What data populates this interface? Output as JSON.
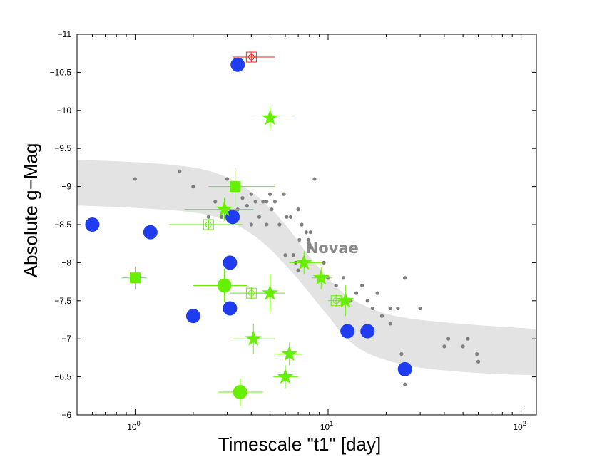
{
  "chart_data": {
    "type": "scatter",
    "xlabel": "Timescale \"t1\" [day]",
    "ylabel": "Absolute g−Mag",
    "xscale": "log",
    "xlim": [
      0.5,
      120
    ],
    "ylim": [
      -11,
      -6
    ],
    "y_inverted": true,
    "grid": false,
    "x_ticks": [
      {
        "value": 1,
        "base": "10",
        "exp": "0"
      },
      {
        "value": 10,
        "base": "10",
        "exp": "1"
      },
      {
        "value": 100,
        "base": "10",
        "exp": "2"
      }
    ],
    "y_ticks": [
      {
        "value": -11,
        "label": "−11"
      },
      {
        "value": -10.5,
        "label": "−10.5"
      },
      {
        "value": -10,
        "label": "−10"
      },
      {
        "value": -9.5,
        "label": "−9.5"
      },
      {
        "value": -9,
        "label": "−9"
      },
      {
        "value": -8.5,
        "label": "−8.5"
      },
      {
        "value": -8,
        "label": "−8"
      },
      {
        "value": -7.5,
        "label": "−7.5"
      },
      {
        "value": -7,
        "label": "−7"
      },
      {
        "value": -6.5,
        "label": "−6.5"
      },
      {
        "value": -6,
        "label": "−6"
      }
    ],
    "region": {
      "label": "Novae",
      "label_x": 10.5,
      "label_y": -8.2,
      "upper": [
        [
          0.5,
          -9.35
        ],
        [
          1,
          -9.32
        ],
        [
          2,
          -9.25
        ],
        [
          3,
          -9.12
        ],
        [
          4,
          -8.93
        ],
        [
          5,
          -8.72
        ],
        [
          6,
          -8.5
        ],
        [
          7,
          -8.28
        ],
        [
          8,
          -8.08
        ],
        [
          10,
          -7.8
        ],
        [
          12,
          -7.6
        ],
        [
          15,
          -7.45
        ],
        [
          20,
          -7.33
        ],
        [
          30,
          -7.25
        ],
        [
          60,
          -7.18
        ],
        [
          120,
          -7.13
        ]
      ],
      "lower": [
        [
          0.5,
          -8.75
        ],
        [
          1,
          -8.72
        ],
        [
          2,
          -8.66
        ],
        [
          3,
          -8.55
        ],
        [
          4,
          -8.38
        ],
        [
          5,
          -8.18
        ],
        [
          6,
          -7.97
        ],
        [
          7,
          -7.78
        ],
        [
          8,
          -7.6
        ],
        [
          10,
          -7.3
        ],
        [
          12,
          -7.05
        ],
        [
          15,
          -6.85
        ],
        [
          20,
          -6.72
        ],
        [
          30,
          -6.62
        ],
        [
          60,
          -6.55
        ],
        [
          120,
          -6.52
        ]
      ],
      "color": "#e3e3e3"
    },
    "series": [
      {
        "name": "novae",
        "marker": "dot",
        "color": "#7f7f7f",
        "points": [
          [
            1.0,
            -9.1
          ],
          [
            1.7,
            -9.2
          ],
          [
            2.0,
            -9.0
          ],
          [
            2.4,
            -8.6
          ],
          [
            2.6,
            -8.8
          ],
          [
            2.8,
            -8.6
          ],
          [
            3.0,
            -9.1
          ],
          [
            3.3,
            -8.95
          ],
          [
            3.4,
            -8.7
          ],
          [
            3.6,
            -8.85
          ],
          [
            3.8,
            -8.75
          ],
          [
            4.0,
            -8.9
          ],
          [
            4.0,
            -8.5
          ],
          [
            4.2,
            -8.8
          ],
          [
            4.4,
            -8.6
          ],
          [
            4.6,
            -8.8
          ],
          [
            4.8,
            -8.8
          ],
          [
            4.8,
            -8.5
          ],
          [
            5.0,
            -8.9
          ],
          [
            5.1,
            -8.7
          ],
          [
            5.3,
            -8.8
          ],
          [
            5.6,
            -8.5
          ],
          [
            5.9,
            -8.9
          ],
          [
            6.0,
            -8.1
          ],
          [
            6.1,
            -8.6
          ],
          [
            6.4,
            -8.6
          ],
          [
            6.6,
            -8.1
          ],
          [
            6.8,
            -8.0
          ],
          [
            7.0,
            -8.7
          ],
          [
            7.1,
            -8.3
          ],
          [
            7.3,
            -8.5
          ],
          [
            7.5,
            -8.0
          ],
          [
            7.7,
            -8.4
          ],
          [
            7.9,
            -8.3
          ],
          [
            8.1,
            -8.4
          ],
          [
            8.2,
            -8.2
          ],
          [
            8.5,
            -9.1
          ],
          [
            7.0,
            -7.9
          ],
          [
            9.5,
            -8.0
          ],
          [
            10.0,
            -7.8
          ],
          [
            11.0,
            -7.7
          ],
          [
            12.0,
            -7.8
          ],
          [
            13.0,
            -7.5
          ],
          [
            14.0,
            -7.6
          ],
          [
            15.0,
            -7.7
          ],
          [
            16.0,
            -7.5
          ],
          [
            17.0,
            -7.4
          ],
          [
            18.0,
            -7.6
          ],
          [
            19.0,
            -7.3
          ],
          [
            21.0,
            -7.4
          ],
          [
            21.0,
            -7.2
          ],
          [
            23.0,
            -7.4
          ],
          [
            24.0,
            -6.8
          ],
          [
            25.0,
            -7.8
          ],
          [
            25.0,
            -6.4
          ],
          [
            30.0,
            -7.4
          ],
          [
            40.0,
            -6.9
          ],
          [
            42.0,
            -7.0
          ],
          [
            50.0,
            -6.9
          ],
          [
            53.0,
            -7.0
          ],
          [
            59.0,
            -6.8
          ],
          [
            60.0,
            -6.7
          ]
        ]
      },
      {
        "name": "blue-circles",
        "marker": "filled-circle",
        "color": "#1f3cf0",
        "points": [
          [
            0.6,
            -8.5
          ],
          [
            1.2,
            -8.4
          ],
          [
            2.0,
            -7.3
          ],
          [
            3.1,
            -7.4
          ],
          [
            3.1,
            -8.0
          ],
          [
            3.2,
            -8.6
          ],
          [
            3.4,
            -10.6
          ],
          [
            12.6,
            -7.1
          ],
          [
            16.0,
            -7.1
          ],
          [
            25.0,
            -6.6
          ]
        ]
      },
      {
        "name": "green-circles",
        "marker": "filled-circle",
        "color": "#66f000",
        "points": [
          {
            "x": 2.9,
            "y": -7.7,
            "xerr": [
              2.0,
              3.8
            ],
            "yerr": 0.22
          },
          {
            "x": 3.5,
            "y": -6.3,
            "xerr": [
              2.7,
              4.6
            ],
            "yerr": 0.18
          }
        ]
      },
      {
        "name": "green-squares",
        "marker": "filled-square",
        "color": "#66f000",
        "points": [
          {
            "x": 1.0,
            "y": -7.8,
            "xerr": [
              0.85,
              1.15
            ],
            "yerr": 0.15
          },
          {
            "x": 3.3,
            "y": -9.0,
            "xerr": [
              2.4,
              5.3
            ],
            "yerr": 0.25
          }
        ]
      },
      {
        "name": "green-stars",
        "marker": "star",
        "color": "#66f000",
        "points": [
          {
            "x": 5.0,
            "y": -9.9,
            "xerr": [
              4.0,
              6.5
            ],
            "yerr": 0.15
          },
          {
            "x": 2.9,
            "y": -8.7,
            "xerr": [
              1.8,
              4.1
            ],
            "yerr": 0.15
          },
          {
            "x": 7.5,
            "y": -8.0,
            "xerr": [
              6.3,
              9.3
            ],
            "yerr": 0.15
          },
          {
            "x": 9.2,
            "y": -7.8,
            "xerr": [
              8.2,
              10.5
            ],
            "yerr": 0.15
          },
          {
            "x": 12.3,
            "y": -7.5,
            "xerr": [
              11.0,
              13.5
            ],
            "yerr": 0.2
          },
          {
            "x": 5.0,
            "y": -7.6,
            "xerr": [
              3.8,
              6.0
            ],
            "yerr": 0.25
          },
          {
            "x": 4.1,
            "y": -7.0,
            "xerr": [
              3.2,
              5.3
            ],
            "yerr": 0.2
          },
          {
            "x": 6.3,
            "y": -6.8,
            "xerr": [
              5.3,
              7.3
            ],
            "yerr": 0.15
          },
          {
            "x": 6.0,
            "y": -6.5,
            "xerr": [
              5.2,
              7.0
            ],
            "yerr": 0.15
          }
        ]
      },
      {
        "name": "green-open-squares",
        "marker": "open-square-circle",
        "color": "#66f000",
        "points": [
          {
            "x": 2.4,
            "y": -8.5,
            "xerr": [
              1.5,
              3.6
            ],
            "yerr": 0.07
          },
          {
            "x": 4.0,
            "y": -7.6,
            "xerr": [
              3.1,
              5.0
            ],
            "yerr": 0.08
          },
          {
            "x": 11.0,
            "y": -7.5,
            "xerr": [
              10.0,
              12.3
            ],
            "yerr": 0.08
          }
        ]
      },
      {
        "name": "red-open-square",
        "marker": "open-square-circle",
        "color": "#ff2020",
        "points": [
          {
            "x": 4.0,
            "y": -10.7,
            "xerr": [
              3.2,
              5.3
            ],
            "yerr": 0.07
          }
        ]
      }
    ]
  }
}
